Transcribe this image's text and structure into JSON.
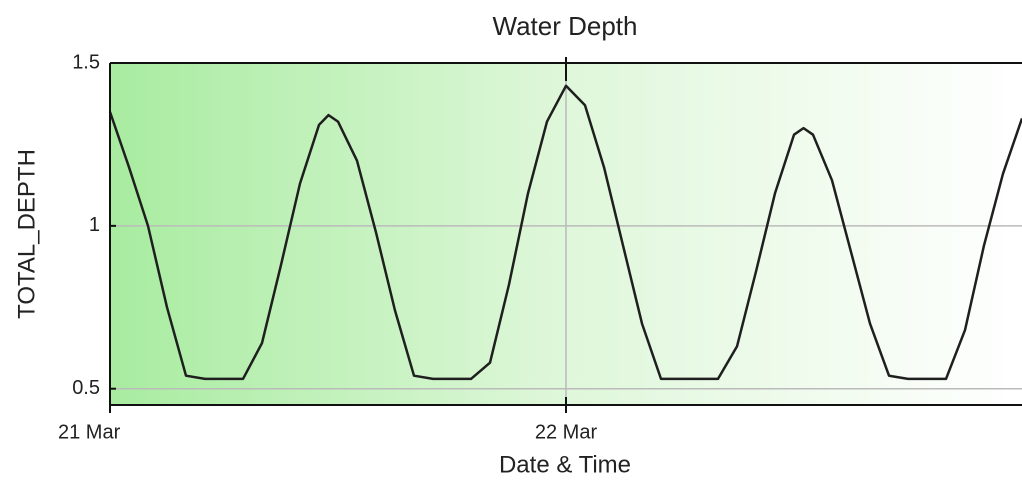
{
  "chart_data": {
    "type": "line",
    "title": "Water Depth",
    "x_label": "Date & Time",
    "y_label": "TOTAL_DEPTH",
    "x": [
      0,
      1,
      2,
      3,
      4,
      5,
      6,
      7,
      8,
      9,
      10,
      11,
      11.5,
      12,
      13,
      14,
      15,
      16,
      17,
      18,
      19,
      20,
      21,
      22,
      23,
      24,
      25,
      26,
      27,
      28,
      29,
      30,
      31,
      32,
      33,
      34,
      35,
      36,
      36.5,
      37,
      38,
      39,
      40,
      41,
      42,
      43,
      44,
      45,
      46,
      47,
      48
    ],
    "series": [
      {
        "name": "TOTAL_DEPTH",
        "color": "#1f1f1f",
        "values": [
          1.35,
          1.18,
          1.0,
          0.75,
          0.54,
          0.53,
          0.53,
          0.53,
          0.64,
          0.88,
          1.13,
          1.31,
          1.34,
          1.32,
          1.2,
          0.98,
          0.74,
          0.54,
          0.53,
          0.53,
          0.53,
          0.58,
          0.82,
          1.1,
          1.32,
          1.43,
          1.37,
          1.18,
          0.94,
          0.7,
          0.53,
          0.53,
          0.53,
          0.53,
          0.63,
          0.86,
          1.1,
          1.28,
          1.3,
          1.28,
          1.14,
          0.92,
          0.7,
          0.54,
          0.53,
          0.53,
          0.53,
          0.68,
          0.94,
          1.16,
          1.33
        ]
      }
    ],
    "xlim": [
      0,
      48
    ],
    "xticks": [
      {
        "value": 0,
        "label": "21 Mar"
      },
      {
        "value": 24,
        "label": "22 Mar"
      }
    ],
    "ylim": [
      0.45,
      1.5
    ],
    "yticks": [
      0.5,
      1,
      1.5
    ],
    "grid": true
  }
}
